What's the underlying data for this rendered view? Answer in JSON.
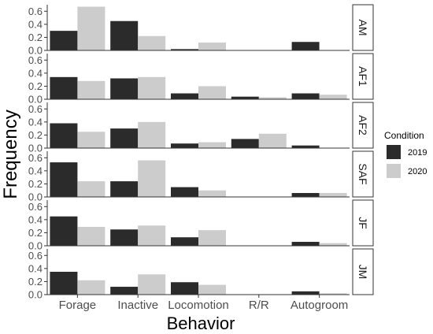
{
  "chart_data": {
    "type": "bar",
    "xlabel": "Behavior",
    "ylabel": "Frequency",
    "ylim": [
      0,
      0.7
    ],
    "yticks": [
      "0.0",
      "0.2",
      "0.4",
      "0.6"
    ],
    "categories": [
      "Forage",
      "Inactive",
      "Locomotion",
      "R/R",
      "Autogroom"
    ],
    "legend": {
      "title": "Condition",
      "position": "right",
      "entries": [
        {
          "label": "2019",
          "color": "#2b2b2b"
        },
        {
          "label": "2020",
          "color": "#cccccc"
        }
      ]
    },
    "facets": [
      {
        "label": "AM",
        "series": [
          {
            "name": "2019",
            "values": [
              0.3,
              0.45,
              0.02,
              0.0,
              0.13
            ]
          },
          {
            "name": "2020",
            "values": [
              0.67,
              0.22,
              0.12,
              0.0,
              0.0
            ]
          }
        ]
      },
      {
        "label": "AF1",
        "series": [
          {
            "name": "2019",
            "values": [
              0.34,
              0.32,
              0.09,
              0.04,
              0.09
            ]
          },
          {
            "name": "2020",
            "values": [
              0.28,
              0.34,
              0.2,
              0.03,
              0.07
            ]
          }
        ]
      },
      {
        "label": "AF2",
        "series": [
          {
            "name": "2019",
            "values": [
              0.38,
              0.3,
              0.07,
              0.14,
              0.04
            ]
          },
          {
            "name": "2020",
            "values": [
              0.25,
              0.4,
              0.09,
              0.22,
              0.0
            ]
          }
        ]
      },
      {
        "label": "SAF",
        "series": [
          {
            "name": "2019",
            "values": [
              0.53,
              0.24,
              0.15,
              0.0,
              0.06
            ]
          },
          {
            "name": "2020",
            "values": [
              0.24,
              0.56,
              0.1,
              0.0,
              0.06
            ]
          }
        ]
      },
      {
        "label": "JF",
        "series": [
          {
            "name": "2019",
            "values": [
              0.45,
              0.25,
              0.13,
              0.0,
              0.06
            ]
          },
          {
            "name": "2020",
            "values": [
              0.29,
              0.31,
              0.24,
              0.0,
              0.04
            ]
          }
        ]
      },
      {
        "label": "JM",
        "series": [
          {
            "name": "2019",
            "values": [
              0.35,
              0.12,
              0.19,
              0.0,
              0.05
            ]
          },
          {
            "name": "2020",
            "values": [
              0.22,
              0.31,
              0.15,
              0.0,
              0.02
            ]
          }
        ]
      }
    ]
  }
}
